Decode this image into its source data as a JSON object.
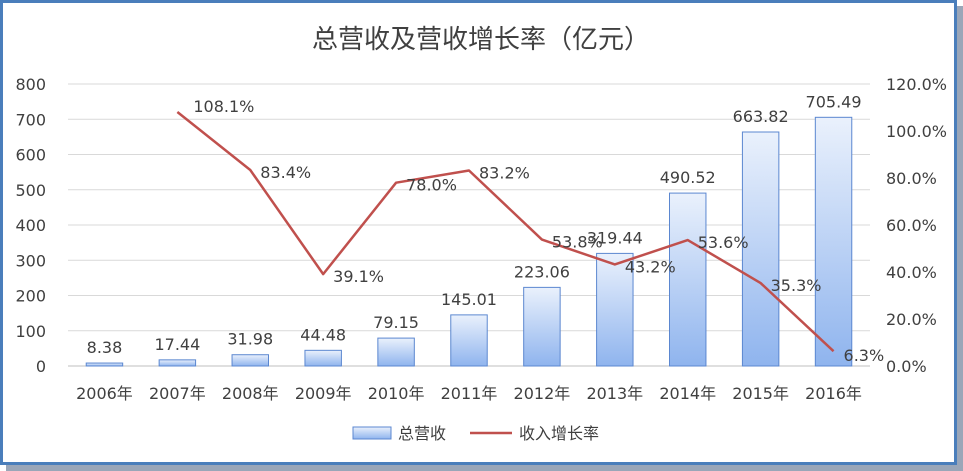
{
  "chart_data": {
    "type": "bar",
    "title": "总营收及营收增长率（亿元）",
    "categories": [
      "2006年",
      "2007年",
      "2008年",
      "2009年",
      "2010年",
      "2011年",
      "2012年",
      "2013年",
      "2014年",
      "2015年",
      "2016年"
    ],
    "series": [
      {
        "name": "总营收",
        "type": "bar",
        "axis": "left",
        "values": [
          8.38,
          17.44,
          31.98,
          44.48,
          79.15,
          145.01,
          223.06,
          319.44,
          490.52,
          663.82,
          705.49
        ],
        "labels": [
          "8.38",
          "17.44",
          "31.98",
          "44.48",
          "79.15",
          "145.01",
          "223.06",
          "319.44",
          "490.52",
          "663.82",
          "705.49"
        ],
        "color": "#8fb4ee"
      },
      {
        "name": "收入增长率",
        "type": "line",
        "axis": "right",
        "values": [
          null,
          108.1,
          83.4,
          39.1,
          78.0,
          83.2,
          53.8,
          43.2,
          53.6,
          35.3,
          6.3
        ],
        "labels": [
          null,
          "108.1%",
          "83.4%",
          "39.1%",
          "78.0%",
          "83.2%",
          "53.8%",
          "43.2%",
          "53.6%",
          "35.3%",
          "6.3%"
        ],
        "color": "#c0504d"
      }
    ],
    "y_left": {
      "ylim": [
        0,
        800
      ],
      "ticks": [
        "0",
        "100",
        "200",
        "300",
        "400",
        "500",
        "600",
        "700",
        "800"
      ]
    },
    "y_right": {
      "ylim": [
        0,
        120
      ],
      "ticks": [
        "0.0%",
        "20.0%",
        "40.0%",
        "60.0%",
        "80.0%",
        "100.0%",
        "120.0%"
      ]
    },
    "grid": true,
    "legend_position": "bottom"
  }
}
